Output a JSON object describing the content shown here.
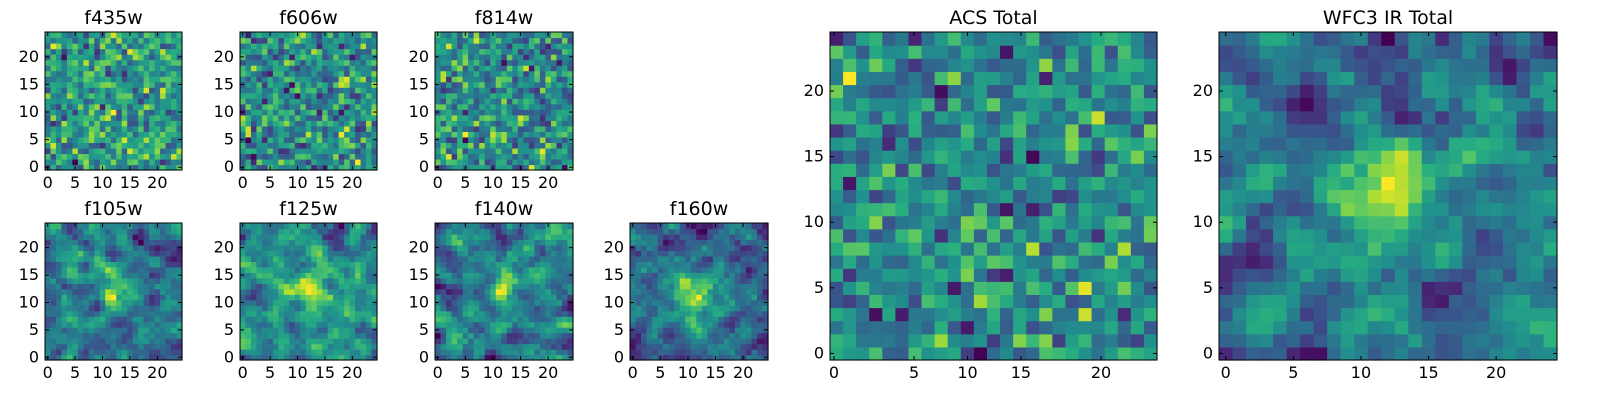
{
  "figure": {
    "colormap": "viridis",
    "colors": {
      "viridis_low": "#440154",
      "viridis_mid": "#21918c",
      "viridis_high": "#fde725"
    }
  },
  "chart_data": [
    {
      "type": "heatmap",
      "title": "f435w",
      "grid_size": 25,
      "xlim": [
        0,
        24
      ],
      "ylim": [
        0,
        24
      ],
      "xticks": [
        "0",
        "5",
        "10",
        "15",
        "20"
      ],
      "yticks": [
        "0",
        "5",
        "10",
        "15",
        "20"
      ],
      "pattern": "noise",
      "seed": 11
    },
    {
      "type": "heatmap",
      "title": "f606w",
      "grid_size": 25,
      "xlim": [
        0,
        24
      ],
      "ylim": [
        0,
        24
      ],
      "xticks": [
        "0",
        "5",
        "10",
        "15",
        "20"
      ],
      "yticks": [
        "0",
        "5",
        "10",
        "15",
        "20"
      ],
      "pattern": "noise",
      "seed": 23
    },
    {
      "type": "heatmap",
      "title": "f814w",
      "grid_size": 25,
      "xlim": [
        0,
        24
      ],
      "ylim": [
        0,
        24
      ],
      "xticks": [
        "0",
        "5",
        "10",
        "15",
        "20"
      ],
      "yticks": [
        "0",
        "5",
        "10",
        "15",
        "20"
      ],
      "pattern": "noise",
      "seed": 37
    },
    {
      "type": "heatmap",
      "title": "f105w",
      "grid_size": 25,
      "xlim": [
        0,
        24
      ],
      "ylim": [
        0,
        24
      ],
      "xticks": [
        "0",
        "5",
        "10",
        "15",
        "20"
      ],
      "yticks": [
        "0",
        "5",
        "10",
        "15",
        "20"
      ],
      "pattern": "smooth",
      "seed": 41
    },
    {
      "type": "heatmap",
      "title": "f125w",
      "grid_size": 25,
      "xlim": [
        0,
        24
      ],
      "ylim": [
        0,
        24
      ],
      "xticks": [
        "0",
        "5",
        "10",
        "15",
        "20"
      ],
      "yticks": [
        "0",
        "5",
        "10",
        "15",
        "20"
      ],
      "pattern": "smooth",
      "seed": 53
    },
    {
      "type": "heatmap",
      "title": "f140w",
      "grid_size": 25,
      "xlim": [
        0,
        24
      ],
      "ylim": [
        0,
        24
      ],
      "xticks": [
        "0",
        "5",
        "10",
        "15",
        "20"
      ],
      "yticks": [
        "0",
        "5",
        "10",
        "15",
        "20"
      ],
      "pattern": "smooth",
      "seed": 67
    },
    {
      "type": "heatmap",
      "title": "f160w",
      "grid_size": 25,
      "xlim": [
        0,
        24
      ],
      "ylim": [
        0,
        24
      ],
      "xticks": [
        "0",
        "5",
        "10",
        "15",
        "20"
      ],
      "yticks": [
        "0",
        "5",
        "10",
        "15",
        "20"
      ],
      "pattern": "source",
      "seed": 79
    },
    {
      "type": "heatmap",
      "title": "ACS Total",
      "grid_size": 25,
      "xlim": [
        0,
        24
      ],
      "ylim": [
        0,
        24
      ],
      "xticks": [
        "0",
        "5",
        "10",
        "15",
        "20"
      ],
      "yticks": [
        "0",
        "5",
        "10",
        "15",
        "20"
      ],
      "pattern": "noise",
      "seed": 83
    },
    {
      "type": "heatmap",
      "title": "WFC3 IR Total",
      "grid_size": 25,
      "xlim": [
        0,
        24
      ],
      "ylim": [
        0,
        24
      ],
      "xticks": [
        "0",
        "5",
        "10",
        "15",
        "20"
      ],
      "yticks": [
        "0",
        "5",
        "10",
        "15",
        "20"
      ],
      "pattern": "source",
      "seed": 97
    }
  ]
}
